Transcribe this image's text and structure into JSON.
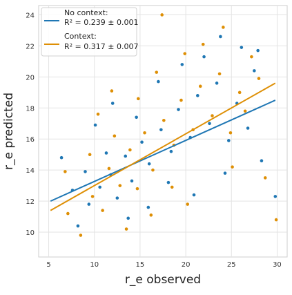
{
  "chart_data": {
    "type": "scatter",
    "title": "",
    "xlabel": "r_e observed",
    "ylabel": "r_e predicted",
    "xlim": [
      3.9,
      31.1
    ],
    "ylim": [
      8.4,
      24.6
    ],
    "x_ticks": [
      5,
      10,
      15,
      20,
      25,
      30
    ],
    "y_ticks": [
      10,
      12,
      14,
      16,
      18,
      20,
      22,
      24
    ],
    "grid": true,
    "legend_position": "top-left",
    "series": [
      {
        "name": "No context:",
        "r2_text": "R² = 0.239 ± 0.001",
        "color": "#1f77b4",
        "fit_line": {
          "x": [
            5.2,
            29.8
          ],
          "y": [
            12.0,
            18.5
          ]
        },
        "points": [
          [
            9.4,
            11.8
          ],
          [
            10.6,
            12.9
          ],
          [
            11.8,
            13.7
          ],
          [
            12.5,
            12.2
          ],
          [
            13.4,
            14.9
          ],
          [
            14.1,
            13.3
          ],
          [
            15.2,
            15.8
          ],
          [
            16.0,
            14.4
          ],
          [
            17.3,
            16.6
          ],
          [
            18.4,
            15.2
          ],
          [
            19.2,
            17.9
          ],
          [
            20.5,
            16.1
          ],
          [
            21.3,
            18.8
          ],
          [
            22.6,
            17.0
          ],
          [
            23.4,
            19.6
          ],
          [
            24.7,
            15.9
          ],
          [
            25.6,
            18.3
          ],
          [
            26.8,
            16.7
          ],
          [
            27.5,
            20.4
          ],
          [
            28.3,
            14.6
          ],
          [
            8.2,
            10.4
          ],
          [
            7.6,
            12.7
          ],
          [
            6.4,
            14.8
          ],
          [
            10.1,
            16.9
          ],
          [
            12.0,
            18.3
          ],
          [
            13.7,
            10.9
          ],
          [
            15.9,
            11.6
          ],
          [
            18.1,
            13.2
          ],
          [
            20.9,
            12.4
          ],
          [
            22.0,
            21.3
          ],
          [
            23.8,
            22.6
          ],
          [
            26.1,
            21.9
          ],
          [
            27.9,
            21.7
          ],
          [
            29.8,
            12.3
          ],
          [
            9.0,
            13.9
          ],
          [
            11.3,
            15.1
          ],
          [
            14.6,
            17.4
          ],
          [
            17.0,
            19.7
          ],
          [
            19.6,
            20.8
          ],
          [
            24.3,
            13.8
          ]
        ]
      },
      {
        "name": "Context:",
        "r2_text": "R² = 0.317 ± 0.007",
        "color": "#de8f05",
        "fit_line": {
          "x": [
            5.2,
            29.8
          ],
          "y": [
            11.4,
            19.6
          ]
        },
        "points": [
          [
            9.8,
            12.3
          ],
          [
            10.9,
            11.4
          ],
          [
            11.6,
            14.1
          ],
          [
            12.8,
            13.0
          ],
          [
            13.9,
            15.3
          ],
          [
            14.7,
            12.8
          ],
          [
            15.5,
            16.4
          ],
          [
            16.4,
            14.0
          ],
          [
            17.6,
            17.2
          ],
          [
            18.7,
            15.6
          ],
          [
            19.5,
            18.5
          ],
          [
            20.8,
            16.6
          ],
          [
            21.6,
            19.4
          ],
          [
            22.9,
            17.5
          ],
          [
            23.7,
            20.2
          ],
          [
            24.9,
            16.4
          ],
          [
            25.9,
            19.0
          ],
          [
            26.5,
            17.8
          ],
          [
            27.2,
            21.3
          ],
          [
            28.7,
            13.5
          ],
          [
            8.5,
            9.8
          ],
          [
            7.1,
            11.2
          ],
          [
            6.8,
            13.9
          ],
          [
            10.4,
            17.6
          ],
          [
            11.9,
            19.1
          ],
          [
            13.5,
            10.2
          ],
          [
            16.2,
            11.1
          ],
          [
            18.5,
            12.9
          ],
          [
            20.2,
            11.8
          ],
          [
            21.9,
            22.1
          ],
          [
            24.1,
            23.2
          ],
          [
            17.4,
            24.0
          ],
          [
            29.9,
            10.8
          ],
          [
            9.5,
            15.0
          ],
          [
            12.2,
            16.2
          ],
          [
            14.8,
            18.6
          ],
          [
            16.8,
            20.3
          ],
          [
            19.9,
            21.5
          ],
          [
            25.1,
            14.2
          ],
          [
            28.0,
            19.9
          ]
        ]
      }
    ]
  }
}
